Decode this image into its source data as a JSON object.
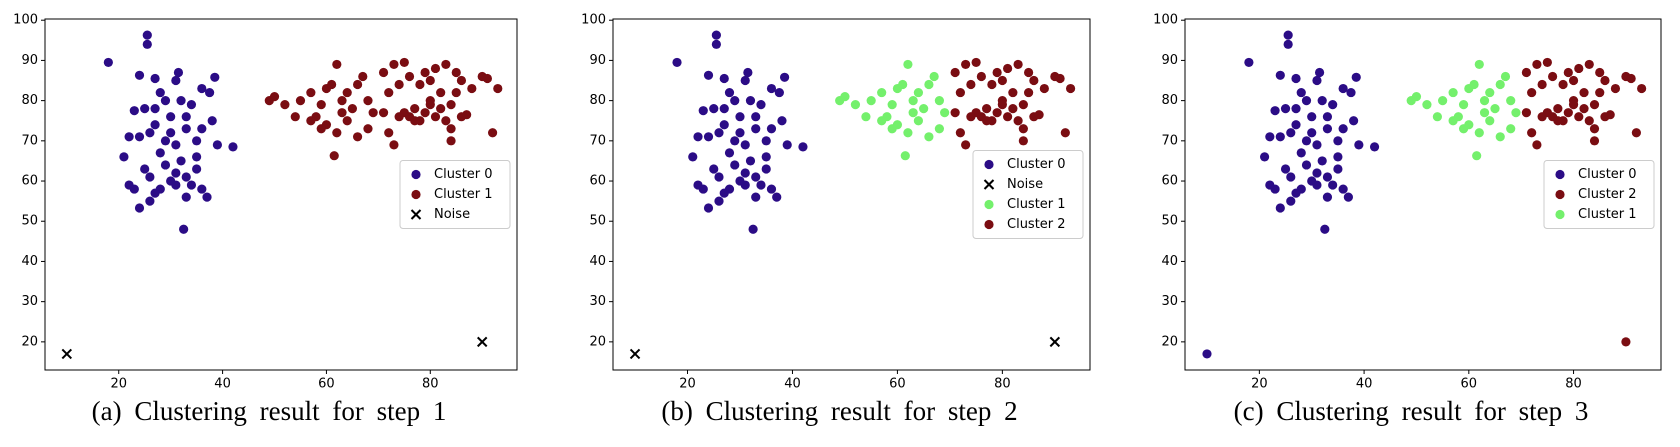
{
  "chart_data": [
    {
      "type": "scatter",
      "caption": "(a) Clustering result for step 1",
      "xlim": [
        5.8,
        96.7
      ],
      "ylim": [
        13.0,
        100.3
      ],
      "xticks": [
        20,
        40,
        60,
        80
      ],
      "yticks": [
        20,
        30,
        40,
        50,
        60,
        70,
        80,
        90,
        100
      ],
      "legend": "center right",
      "series": [
        {
          "name": "Cluster 0",
          "color": "#2b0c86",
          "marker": "o",
          "x": [
            18,
            25.5,
            25.5,
            24,
            27,
            31.5,
            31,
            36,
            37.5,
            38.5,
            28,
            23,
            25,
            29,
            32,
            34,
            30,
            27,
            24,
            22,
            21,
            26,
            33,
            36,
            38,
            39,
            42,
            35,
            31,
            28,
            25,
            26,
            29,
            31,
            33,
            32,
            35,
            30,
            28,
            27,
            23,
            24,
            26,
            32.5,
            33,
            36,
            37,
            34,
            31,
            29,
            33,
            27,
            30,
            35,
            22
          ],
          "values": [
            89.5,
            96.3,
            94,
            86.3,
            85.5,
            87,
            85,
            83,
            82,
            85.8,
            82,
            77.5,
            78,
            80,
            80,
            79,
            76,
            74,
            71,
            71,
            66,
            72,
            73,
            73,
            75,
            69,
            68.5,
            70,
            69,
            67,
            63,
            61,
            64,
            62,
            61,
            65,
            66,
            60,
            58,
            57,
            58,
            53.3,
            55,
            48,
            56,
            58,
            56,
            59,
            59,
            70,
            76,
            78,
            72,
            63,
            59
          ]
        },
        {
          "name": "Cluster 1",
          "color": "#7a0d12",
          "marker": "o",
          "x": [
            49,
            50,
            52,
            54,
            55,
            57,
            58,
            59,
            60,
            61,
            62,
            63,
            64,
            65,
            66,
            67,
            68,
            69,
            60,
            62,
            64,
            66,
            68,
            61.5,
            57,
            63,
            59,
            71,
            73,
            75,
            72,
            74,
            76,
            78,
            79,
            80,
            81,
            83,
            85,
            86,
            88,
            90,
            91,
            93,
            72,
            73,
            75,
            76,
            77,
            78,
            79,
            80,
            81,
            82,
            83,
            84,
            85,
            86,
            87,
            84,
            84,
            92,
            71,
            74,
            77,
            80,
            82
          ],
          "values": [
            80,
            81,
            79,
            76,
            80,
            82,
            76,
            79,
            83,
            84,
            89,
            80,
            82,
            78,
            84,
            86,
            80,
            77,
            74,
            72,
            75,
            71,
            73,
            66.3,
            75,
            77,
            73,
            87,
            89,
            89.5,
            82,
            84,
            86,
            84,
            87,
            85,
            88,
            89,
            87,
            85,
            83,
            86,
            85.5,
            83,
            72,
            69,
            77,
            76,
            78,
            75,
            77,
            80,
            76,
            78,
            75,
            79,
            82,
            76,
            76.5,
            73,
            70,
            72,
            77,
            76,
            75,
            79,
            82
          ]
        },
        {
          "name": "Noise",
          "color": "#000000",
          "marker": "x",
          "x": [
            10,
            90
          ],
          "values": [
            17,
            20
          ]
        }
      ]
    },
    {
      "type": "scatter",
      "caption": "(b) Clustering result for step 2",
      "xlim": [
        5.8,
        96.7
      ],
      "ylim": [
        13.0,
        100.3
      ],
      "xticks": [
        20,
        40,
        60,
        80
      ],
      "yticks": [
        20,
        30,
        40,
        50,
        60,
        70,
        80,
        90,
        100
      ],
      "legend": "center right",
      "series": [
        {
          "name": "Cluster 0",
          "color": "#2b0c86",
          "marker": "o",
          "x": [
            18,
            25.5,
            25.5,
            24,
            27,
            31.5,
            31,
            36,
            37.5,
            38.5,
            28,
            23,
            25,
            29,
            32,
            34,
            30,
            27,
            24,
            22,
            21,
            26,
            33,
            36,
            38,
            39,
            42,
            35,
            31,
            28,
            25,
            26,
            29,
            31,
            33,
            32,
            35,
            30,
            28,
            27,
            23,
            24,
            26,
            32.5,
            33,
            36,
            37,
            34,
            31,
            29,
            33,
            27,
            30,
            35,
            22
          ],
          "values": [
            89.5,
            96.3,
            94,
            86.3,
            85.5,
            87,
            85,
            83,
            82,
            85.8,
            82,
            77.5,
            78,
            80,
            80,
            79,
            76,
            74,
            71,
            71,
            66,
            72,
            73,
            73,
            75,
            69,
            68.5,
            70,
            69,
            67,
            63,
            61,
            64,
            62,
            61,
            65,
            66,
            60,
            58,
            57,
            58,
            53.3,
            55,
            48,
            56,
            58,
            56,
            59,
            59,
            70,
            76,
            78,
            72,
            63,
            59
          ]
        },
        {
          "name": "Noise",
          "color": "#000000",
          "marker": "x",
          "x": [
            10,
            90
          ],
          "values": [
            17,
            20
          ]
        },
        {
          "name": "Cluster 1",
          "color": "#74f06c",
          "marker": "o",
          "x": [
            49,
            50,
            52,
            54,
            55,
            57,
            58,
            59,
            60,
            61,
            62,
            63,
            64,
            65,
            66,
            67,
            68,
            69,
            60,
            62,
            64,
            66,
            68,
            61.5,
            57,
            63,
            59
          ],
          "values": [
            80,
            81,
            79,
            76,
            80,
            82,
            76,
            79,
            83,
            84,
            89,
            80,
            82,
            78,
            84,
            86,
            80,
            77,
            74,
            72,
            75,
            71,
            73,
            66.3,
            75,
            77,
            73
          ]
        },
        {
          "name": "Cluster 2",
          "color": "#7a0d12",
          "marker": "o",
          "x": [
            71,
            73,
            75,
            72,
            74,
            76,
            78,
            79,
            80,
            81,
            83,
            85,
            86,
            88,
            90,
            91,
            93,
            72,
            73,
            75,
            76,
            77,
            78,
            79,
            80,
            81,
            82,
            83,
            84,
            85,
            86,
            87,
            84,
            84,
            92,
            71,
            74,
            77,
            80,
            82
          ],
          "values": [
            87,
            89,
            89.5,
            82,
            84,
            86,
            84,
            87,
            85,
            88,
            89,
            87,
            85,
            83,
            86,
            85.5,
            83,
            72,
            69,
            77,
            76,
            78,
            75,
            77,
            80,
            76,
            78,
            75,
            79,
            82,
            76,
            76.5,
            73,
            70,
            72,
            77,
            76,
            75,
            79,
            82
          ]
        }
      ]
    },
    {
      "type": "scatter",
      "caption": "(c) Clustering result for step 3",
      "xlim": [
        5.8,
        96.7
      ],
      "ylim": [
        13.0,
        100.3
      ],
      "xticks": [
        20,
        40,
        60,
        80
      ],
      "yticks": [
        20,
        30,
        40,
        50,
        60,
        70,
        80,
        90,
        100
      ],
      "legend": "center right",
      "series": [
        {
          "name": "Cluster 0",
          "color": "#2b0c86",
          "marker": "o",
          "x": [
            18,
            25.5,
            25.5,
            24,
            27,
            31.5,
            31,
            36,
            37.5,
            38.5,
            28,
            23,
            25,
            29,
            32,
            34,
            30,
            27,
            24,
            22,
            21,
            26,
            33,
            36,
            38,
            39,
            42,
            35,
            31,
            28,
            25,
            26,
            29,
            31,
            33,
            32,
            35,
            30,
            28,
            27,
            23,
            24,
            26,
            32.5,
            33,
            36,
            37,
            34,
            31,
            29,
            33,
            27,
            30,
            35,
            22,
            10
          ],
          "values": [
            89.5,
            96.3,
            94,
            86.3,
            85.5,
            87,
            85,
            83,
            82,
            85.8,
            82,
            77.5,
            78,
            80,
            80,
            79,
            76,
            74,
            71,
            71,
            66,
            72,
            73,
            73,
            75,
            69,
            68.5,
            70,
            69,
            67,
            63,
            61,
            64,
            62,
            61,
            65,
            66,
            60,
            58,
            57,
            58,
            53.3,
            55,
            48,
            56,
            58,
            56,
            59,
            59,
            70,
            76,
            78,
            72,
            63,
            59,
            17
          ]
        },
        {
          "name": "Cluster 2",
          "color": "#7a0d12",
          "marker": "o",
          "x": [
            71,
            73,
            75,
            72,
            74,
            76,
            78,
            79,
            80,
            81,
            83,
            85,
            86,
            88,
            90,
            91,
            93,
            72,
            73,
            75,
            76,
            77,
            78,
            79,
            80,
            81,
            82,
            83,
            84,
            85,
            86,
            87,
            84,
            84,
            92,
            71,
            74,
            77,
            80,
            82,
            90
          ],
          "values": [
            87,
            89,
            89.5,
            82,
            84,
            86,
            84,
            87,
            85,
            88,
            89,
            87,
            85,
            83,
            86,
            85.5,
            83,
            72,
            69,
            77,
            76,
            78,
            75,
            77,
            80,
            76,
            78,
            75,
            79,
            82,
            76,
            76.5,
            73,
            70,
            72,
            77,
            76,
            75,
            79,
            82,
            20
          ]
        },
        {
          "name": "Cluster 1",
          "color": "#74f06c",
          "marker": "o",
          "x": [
            49,
            50,
            52,
            54,
            55,
            57,
            58,
            59,
            60,
            61,
            62,
            63,
            64,
            65,
            66,
            67,
            68,
            69,
            60,
            62,
            64,
            66,
            68,
            61.5,
            57,
            63,
            59
          ],
          "values": [
            80,
            81,
            79,
            76,
            80,
            82,
            76,
            79,
            83,
            84,
            89,
            80,
            82,
            78,
            84,
            86,
            80,
            77,
            74,
            72,
            75,
            71,
            73,
            66.3,
            75,
            77,
            73
          ]
        }
      ]
    }
  ]
}
